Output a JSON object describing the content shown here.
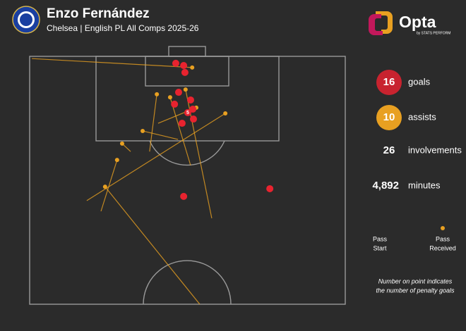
{
  "header": {
    "title": "Enzo Fernández",
    "subtitle": "Chelsea | English PL All Comps 2025-26"
  },
  "brand": {
    "name": "Opta",
    "tagline": "by STATS PERFORM"
  },
  "stats": [
    {
      "value": 16,
      "label": "goals",
      "color": "#c8232f"
    },
    {
      "value": 10,
      "label": "assists",
      "color": "#e8a021"
    },
    {
      "value": 26,
      "label": "involvements"
    },
    {
      "value": 4892,
      "value_label": "4,892",
      "label": "minutes"
    }
  ],
  "legend": {
    "start": [
      "Pass",
      "Start"
    ],
    "end": [
      "Pass",
      "Received"
    ]
  },
  "note": [
    "Number on point indicates",
    "the number of penalty goals"
  ],
  "chart_data": {
    "type": "scatter",
    "xlim": [
      0,
      100
    ],
    "ylim": [
      0,
      100
    ],
    "goals": {
      "color": "#e8232f",
      "x": [
        46.3,
        48.8,
        49.2,
        47.2,
        51.0,
        45.9,
        50.1,
        51.7,
        51.9,
        48.3,
        48.8,
        76.1
      ],
      "y": [
        2.8,
        3.7,
        6.5,
        14.5,
        17.6,
        19.3,
        22.7,
        21.3,
        25.3,
        27.0,
        56.5,
        53.4
      ],
      "labels": [
        null,
        null,
        null,
        null,
        null,
        null,
        5,
        null,
        null,
        null,
        null,
        null
      ]
    },
    "assists": {
      "color": "#e8a021",
      "x_start": [
        0.7,
        38.0,
        51.0,
        57.7,
        40.7,
        47.0,
        18.1,
        22.6,
        53.9,
        32.0
      ],
      "y_start": [
        0.9,
        38.4,
        44.0,
        65.3,
        27.0,
        33.5,
        58.2,
        62.5,
        100,
        38.4
      ],
      "x": [
        51.5,
        40.3,
        44.5,
        49.4,
        52.8,
        35.8,
        62.0,
        27.7,
        23.9,
        29.3
      ],
      "y": [
        4.5,
        15.3,
        16.5,
        13.4,
        20.7,
        30.1,
        23.0,
        41.8,
        52.6,
        35.2
      ]
    }
  }
}
